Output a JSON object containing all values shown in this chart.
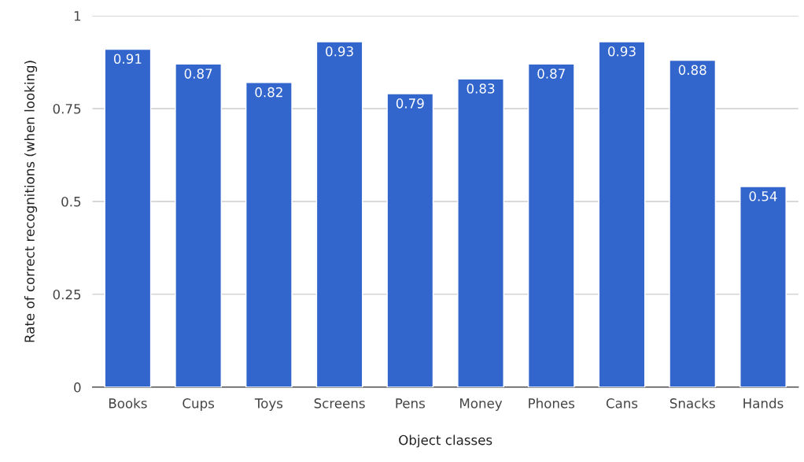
{
  "chart_data": {
    "type": "bar",
    "xlabel": "Object classes",
    "ylabel": "Rate of correct recognitions (when looking)",
    "categories": [
      "Books",
      "Cups",
      "Toys",
      "Screens",
      "Pens",
      "Money",
      "Phones",
      "Cans",
      "Snacks",
      "Hands"
    ],
    "values": [
      0.91,
      0.87,
      0.82,
      0.93,
      0.79,
      0.83,
      0.87,
      0.93,
      0.88,
      0.54
    ],
    "color": "#3366cc",
    "ylim": [
      0,
      1
    ],
    "yticks": [
      0,
      0.25,
      0.5,
      0.75,
      1
    ],
    "grid": "y",
    "data_labels": true
  }
}
